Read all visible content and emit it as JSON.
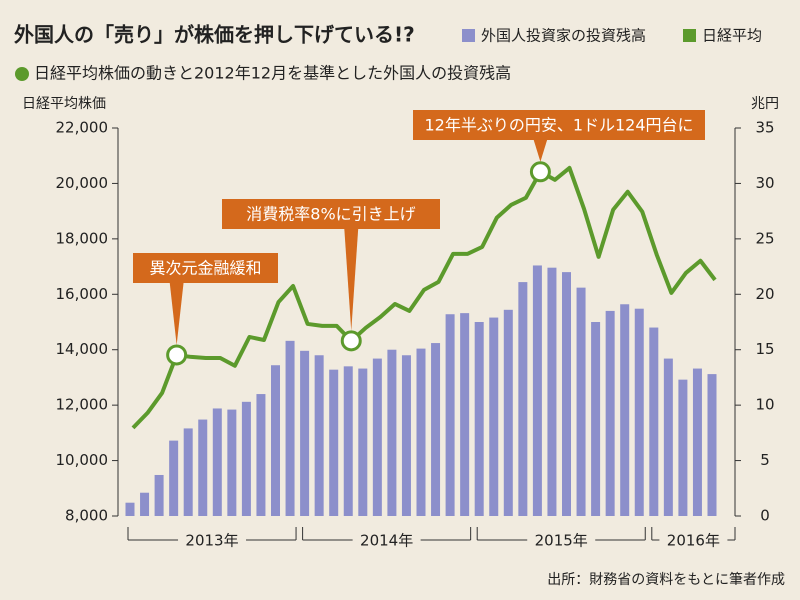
{
  "chart_data": {
    "type": "bar_line",
    "title": "外国人の「売り」が株価を押し下げている!?",
    "subtitle": "日経平均株価の動きと2012年12月を基準とした外国人の投資残高",
    "y_label": "日経平均株価",
    "y2_label": "兆円",
    "source": "出所：財務省の資料をもとに筆者作成",
    "categories": [
      null,
      null,
      null,
      null,
      null,
      null,
      null,
      null,
      null,
      null,
      null,
      null,
      null,
      null,
      null,
      null,
      null,
      null,
      null,
      null,
      null,
      null,
      null,
      null,
      null,
      null,
      null,
      null,
      null,
      null,
      null,
      null,
      null,
      null,
      null,
      null,
      null,
      null,
      null,
      null,
      null
    ],
    "year_labels": [
      "2013年",
      "2014年",
      "2015年",
      "2016年"
    ],
    "series": [
      {
        "name": "外国人投資家の投資残高",
        "type": "bar",
        "axis": "y2",
        "color": "#8c8fcb",
        "values": [
          1.2,
          2.1,
          3.7,
          6.8,
          7.9,
          8.7,
          9.7,
          9.6,
          10.3,
          11.0,
          13.6,
          15.8,
          14.9,
          14.5,
          13.2,
          13.5,
          13.3,
          14.2,
          15.0,
          14.5,
          15.1,
          15.6,
          18.2,
          18.3,
          17.5,
          17.9,
          18.6,
          21.1,
          22.6,
          22.4,
          22.0,
          20.6,
          17.5,
          18.5,
          19.1,
          18.7,
          17.0,
          14.2,
          12.3,
          13.3,
          12.8
        ]
      },
      {
        "name": "日経平均",
        "type": "line",
        "color": "#5c9a2c",
        "values": [
          11180,
          11720,
          12440,
          13810,
          13740,
          13700,
          13700,
          13420,
          14460,
          14350,
          15720,
          16300,
          14930,
          14860,
          14860,
          14320,
          14790,
          15180,
          15650,
          15400,
          16160,
          16450,
          17460,
          17460,
          17710,
          18760,
          19230,
          19480,
          20420,
          20130,
          20560,
          19080,
          17350,
          19050,
          19700,
          18980,
          17420,
          16050,
          16770,
          17210,
          16520
        ]
      }
    ],
    "annotations": [
      {
        "text": "異次元金融緩和",
        "point": 3
      },
      {
        "text": "消費税率8%に引き上げ",
        "point": 15
      },
      {
        "text": "12年半ぶりの円安、1ドル124円台に",
        "point": 28
      }
    ],
    "ylim": [
      8000,
      22000
    ],
    "yticks": [
      {
        "value": 8000,
        "label": "8,000"
      },
      {
        "value": 10000,
        "label": "10,000"
      },
      {
        "value": 12000,
        "label": "12,000"
      },
      {
        "value": 14000,
        "label": "14,000"
      },
      {
        "value": 16000,
        "label": "16,000"
      },
      {
        "value": 18000,
        "label": "18,000"
      },
      {
        "value": 20000,
        "label": "20,000"
      },
      {
        "value": 22000,
        "label": "22,000"
      }
    ],
    "y2lim": [
      0,
      35
    ],
    "y2ticks": [
      0,
      5,
      10,
      15,
      20,
      25,
      30,
      35
    ],
    "annotation_color": "#d4691c"
  }
}
